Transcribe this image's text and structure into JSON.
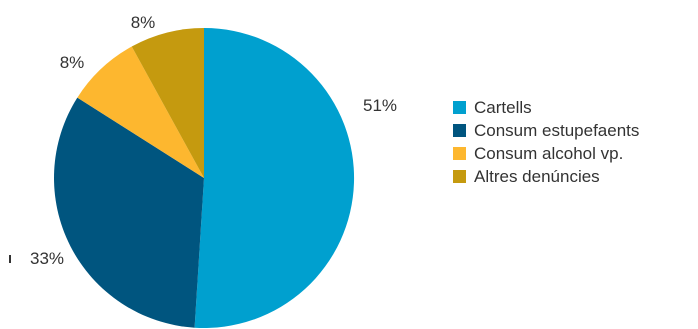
{
  "chart_data": {
    "type": "pie",
    "title": "",
    "slices": [
      {
        "label": "Cartells",
        "value": 51,
        "value_label": "51%",
        "color": "#00a0cf"
      },
      {
        "label": "Consum estupefaents",
        "value": 33,
        "value_label": "33%",
        "color": "#00557f"
      },
      {
        "label": "Consum alcohol vp.",
        "value": 8,
        "value_label": "8%",
        "color": "#fdb72f"
      },
      {
        "label": "Altres denúncies",
        "value": 8,
        "value_label": "8%",
        "color": "#c59a0f"
      }
    ],
    "legend_position": "right"
  }
}
